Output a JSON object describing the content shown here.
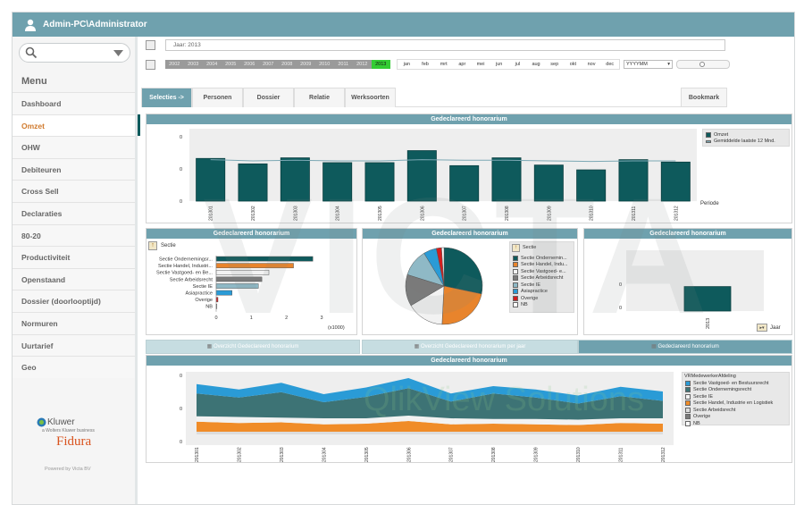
{
  "header": {
    "user": "Admin-PC\\Administrator"
  },
  "sidebar": {
    "menu_title": "Menu",
    "items": [
      {
        "label": "Dashboard"
      },
      {
        "label": "Omzet"
      },
      {
        "label": "OHW"
      },
      {
        "label": "Debiteuren"
      },
      {
        "label": "Cross Sell"
      },
      {
        "label": "Declaraties"
      },
      {
        "label": "80-20"
      },
      {
        "label": "Productiviteit"
      },
      {
        "label": "Openstaand"
      },
      {
        "label": "Dossier (doorlooptijd)"
      },
      {
        "label": "Normuren"
      },
      {
        "label": "Uurtarief"
      },
      {
        "label": "Geo"
      }
    ],
    "active_index": 1,
    "brand_kluwer": "Kluwer",
    "brand_kluwer_sub": "a Wolters Kluwer business",
    "brand_fidura": "Fidura",
    "powered": "Powered by Victa BV"
  },
  "filters": {
    "jaar": "Jaar: 2013",
    "years": [
      "2002",
      "2003",
      "2004",
      "2005",
      "2006",
      "2007",
      "2008",
      "2009",
      "2010",
      "2011",
      "2012",
      "2013"
    ],
    "selected_year": "2013",
    "months": [
      "jan",
      "feb",
      "mrt",
      "apr",
      "mei",
      "jun",
      "jul",
      "aug",
      "sep",
      "okt",
      "nov",
      "dec"
    ],
    "yyyymm": "YYYYMM"
  },
  "tabs": [
    {
      "label": "Selecties ->"
    },
    {
      "label": "Personen"
    },
    {
      "label": "Dossier"
    },
    {
      "label": "Relatie"
    },
    {
      "label": "Werksoorten"
    }
  ],
  "bookmark": "Bookmark",
  "subtabs": [
    {
      "label": "Overzicht Gedeclareerd honorarium"
    },
    {
      "label": "Overzicht Gedeclareerd honorarium per jaar"
    },
    {
      "label": "Gedeclareerd honorarium"
    }
  ],
  "watermark": "VICTA",
  "watermark2": "QlikView Solutions",
  "colors": {
    "header": "#6fa1ae",
    "bar": "#0e5a5c",
    "orange": "#e8842c",
    "active_menu": "#d07a2d",
    "selected_year": "#33cc33"
  },
  "chart_data": [
    {
      "type": "bar",
      "title": "Gedeclareerd honorarium",
      "categories": [
        "201301",
        "201302",
        "201303",
        "201304",
        "201305",
        "201306",
        "201307",
        "201308",
        "201309",
        "201310",
        "201311",
        "201312"
      ],
      "values": [
        0.71,
        0.62,
        0.72,
        0.64,
        0.64,
        0.84,
        0.59,
        0.72,
        0.6,
        0.52,
        0.69,
        0.65
      ],
      "line": {
        "name": "Gemiddelde laatste 12 Mnd.",
        "values": [
          0.69,
          0.67,
          0.68,
          0.67,
          0.67,
          0.69,
          0.68,
          0.68,
          0.67,
          0.66,
          0.67,
          0.67
        ]
      },
      "legend": [
        "Omzet",
        "Gemiddelde laatste 12 Mnd."
      ],
      "yticks": [
        "0",
        "0",
        "0"
      ],
      "xlabel": "Periode"
    },
    {
      "type": "bar",
      "orientation": "horizontal",
      "title": "Gedeclareerd honorarium",
      "dimension": "Sectie",
      "categories": [
        "Sectie Ondernemingsr...",
        "Sectie Handel, Industri...",
        "Sectie Vastgoed- en Be...",
        "Sectie Arbeidsrecht",
        "Sectie IE",
        "Asiapractice",
        "Overige",
        "NB"
      ],
      "values": [
        2.75,
        2.2,
        1.5,
        1.3,
        1.2,
        0.45,
        0.05,
        0.02
      ],
      "colors": [
        "#0e5a5c",
        "#e8842c",
        "#f2f2f2",
        "#7a7a7a",
        "#8fb9c6",
        "#2a9bd6",
        "#d41e1e",
        "#ffffff"
      ],
      "xticks": [
        "0",
        "1",
        "2",
        "3"
      ],
      "xunit": "(x1000)",
      "xlim": [
        0,
        3
      ]
    },
    {
      "type": "pie",
      "title": "Gedeclareerd honorarium",
      "dimension": "Sectie",
      "labels": [
        "Sectie Ondernemin...",
        "Sectie Handel, Indu...",
        "Sectie Vastgoed- e...",
        "Sectie Arbeidsrecht",
        "Sectie IE",
        "Asiapractice",
        "Overige",
        "NB"
      ],
      "values": [
        28.3,
        22.5,
        15.7,
        13.3,
        11.5,
        5.5,
        2.2,
        1.0
      ],
      "colors": [
        "#0e5a5c",
        "#e8842c",
        "#f2f2f2",
        "#7a7a7a",
        "#8fb9c6",
        "#2a9bd6",
        "#d41e1e",
        "#ffffff"
      ]
    },
    {
      "type": "bar",
      "title": "Gedeclareerd honorarium",
      "categories": [
        "2013"
      ],
      "values": [
        0.72
      ],
      "yticks": [
        "0",
        "0"
      ],
      "dimension": "Jaar"
    },
    {
      "type": "area",
      "title": "Gedeclareerd honorarium",
      "legend_title": "VRMedewerkerAfdeling",
      "x": [
        "201301",
        "201302",
        "201303",
        "201304",
        "201305",
        "201306",
        "201307",
        "201308",
        "201309",
        "201310",
        "201311",
        "201312"
      ],
      "yticks": [
        "0",
        "0",
        "0"
      ],
      "series": [
        {
          "name": "Sectie Vastgoed- en Bestuursrecht",
          "color": "#2a9bd6",
          "values": [
            0.14,
            0.12,
            0.14,
            0.12,
            0.14,
            0.15,
            0.12,
            0.11,
            0.12,
            0.12,
            0.14,
            0.14
          ]
        },
        {
          "name": "Sectie Ondernemingsrecht",
          "color": "#3d7375",
          "values": [
            0.34,
            0.29,
            0.38,
            0.24,
            0.32,
            0.41,
            0.25,
            0.38,
            0.32,
            0.24,
            0.33,
            0.26
          ]
        },
        {
          "name": "Sectie IE",
          "color": "#f2f2f2",
          "values": [
            0.08,
            0.09,
            0.07,
            0.09,
            0.08,
            0.08,
            0.09,
            0.07,
            0.08,
            0.08,
            0.07,
            0.08
          ]
        },
        {
          "name": "Sectie Handel, Industrie en Logistiek",
          "color": "#f08c28",
          "values": [
            0.15,
            0.13,
            0.14,
            0.11,
            0.12,
            0.16,
            0.11,
            0.12,
            0.11,
            0.1,
            0.13,
            0.12
          ]
        },
        {
          "name": "Sectie Arbeidsrecht",
          "color": "#dcdcdc",
          "values": [
            0.04,
            0.04,
            0.04,
            0.04,
            0.04,
            0.04,
            0.04,
            0.04,
            0.04,
            0.04,
            0.04,
            0.04
          ]
        },
        {
          "name": "Overige",
          "color": "#7a7a7a",
          "values": [
            0.0,
            0.0,
            0.0,
            0.0,
            0.0,
            0.0,
            0.0,
            0.0,
            0.0,
            0.0,
            0.0,
            0.0
          ]
        },
        {
          "name": "NB",
          "color": "#ffffff",
          "values": [
            0.0,
            0.0,
            0.0,
            0.0,
            0.0,
            0.0,
            0.0,
            0.0,
            0.0,
            0.0,
            0.0,
            0.0
          ]
        }
      ]
    }
  ]
}
